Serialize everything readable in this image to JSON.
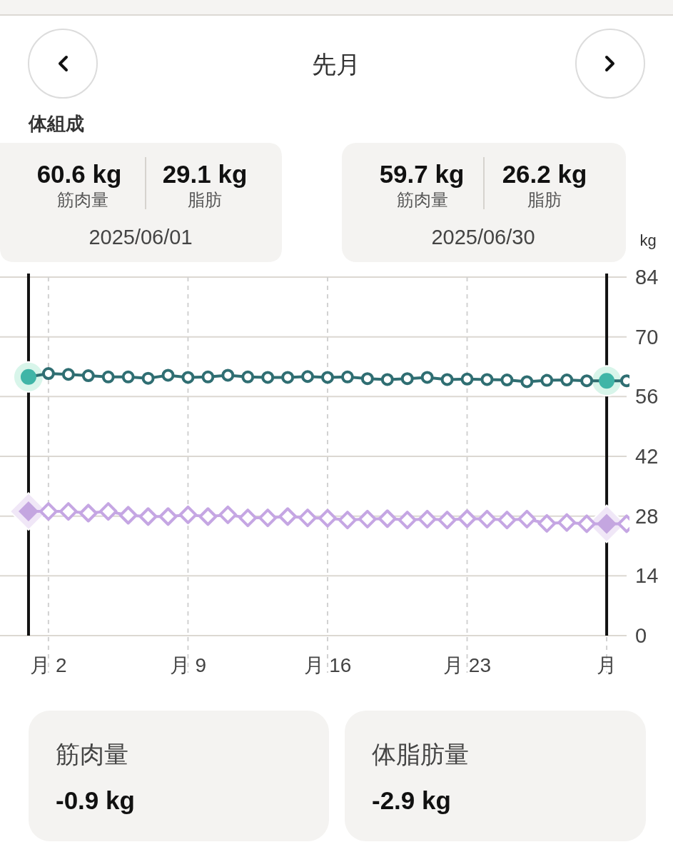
{
  "chart_data": {
    "type": "line",
    "title": "先月",
    "subtitle": "体組成",
    "ylabel": "kg",
    "annotations": [
      "60.6 kg",
      "29.1 kg",
      "筋肉量",
      "脂肪",
      "2025/06/01",
      "59.7 kg",
      "26.2 kg",
      "筋肉量",
      "脂肪",
      "2025/06/30",
      "筋肉量",
      "-0.9 kg",
      "体脂肪量",
      "-2.9 kg"
    ],
    "x": [
      "2025-06-01",
      "2025-06-02",
      "2025-06-03",
      "2025-06-04",
      "2025-06-05",
      "2025-06-06",
      "2025-06-07",
      "2025-06-08",
      "2025-06-09",
      "2025-06-10",
      "2025-06-11",
      "2025-06-12",
      "2025-06-13",
      "2025-06-14",
      "2025-06-15",
      "2025-06-16",
      "2025-06-17",
      "2025-06-18",
      "2025-06-19",
      "2025-06-20",
      "2025-06-21",
      "2025-06-22",
      "2025-06-23",
      "2025-06-24",
      "2025-06-25",
      "2025-06-26",
      "2025-06-27",
      "2025-06-28",
      "2025-06-29",
      "2025-06-30",
      "2025-07-01"
    ],
    "series": [
      {
        "color": "#2f6e72",
        "marker": "circle",
        "values": [
          60.6,
          61.4,
          61.2,
          60.9,
          60.6,
          60.6,
          60.3,
          61.0,
          60.5,
          60.6,
          61.0,
          60.6,
          60.5,
          60.5,
          60.7,
          60.5,
          60.6,
          60.2,
          60.0,
          60.2,
          60.5,
          60.0,
          60.1,
          60.0,
          59.9,
          59.5,
          59.8,
          59.9,
          59.7,
          59.7,
          59.7
        ]
      },
      {
        "color": "#c5a6e3",
        "marker": "diamond",
        "values": [
          29.1,
          29.1,
          29.1,
          28.7,
          29.1,
          28.2,
          27.9,
          27.9,
          28.3,
          27.9,
          28.3,
          27.6,
          27.6,
          27.9,
          27.6,
          27.5,
          27.1,
          27.3,
          27.4,
          27.1,
          27.3,
          27.1,
          27.4,
          27.3,
          27.1,
          27.3,
          26.3,
          26.5,
          26.2,
          26.2,
          26.2
        ]
      }
    ],
    "xlim": [
      "2025-05-30T13:40",
      "2025-07-01"
    ],
    "xticks": [
      {
        "value": "2025-06-02",
        "label": "月 2"
      },
      {
        "value": "2025-06-09",
        "label": "月 9"
      },
      {
        "value": "2025-06-16",
        "label": "月 16"
      },
      {
        "value": "2025-06-23",
        "label": "月 23"
      },
      {
        "value": "2025-06-30",
        "label": "月"
      }
    ],
    "ylim": [
      0,
      84
    ],
    "yticks": [
      0,
      14,
      28,
      42,
      56,
      70,
      84
    ],
    "grid": true,
    "line_style": "solid",
    "ref_lines": [
      {
        "axis": "x",
        "value": "2025-06-01",
        "color": "#111111"
      },
      {
        "axis": "x",
        "value": "2025-06-30",
        "color": "#111111"
      }
    ]
  }
}
